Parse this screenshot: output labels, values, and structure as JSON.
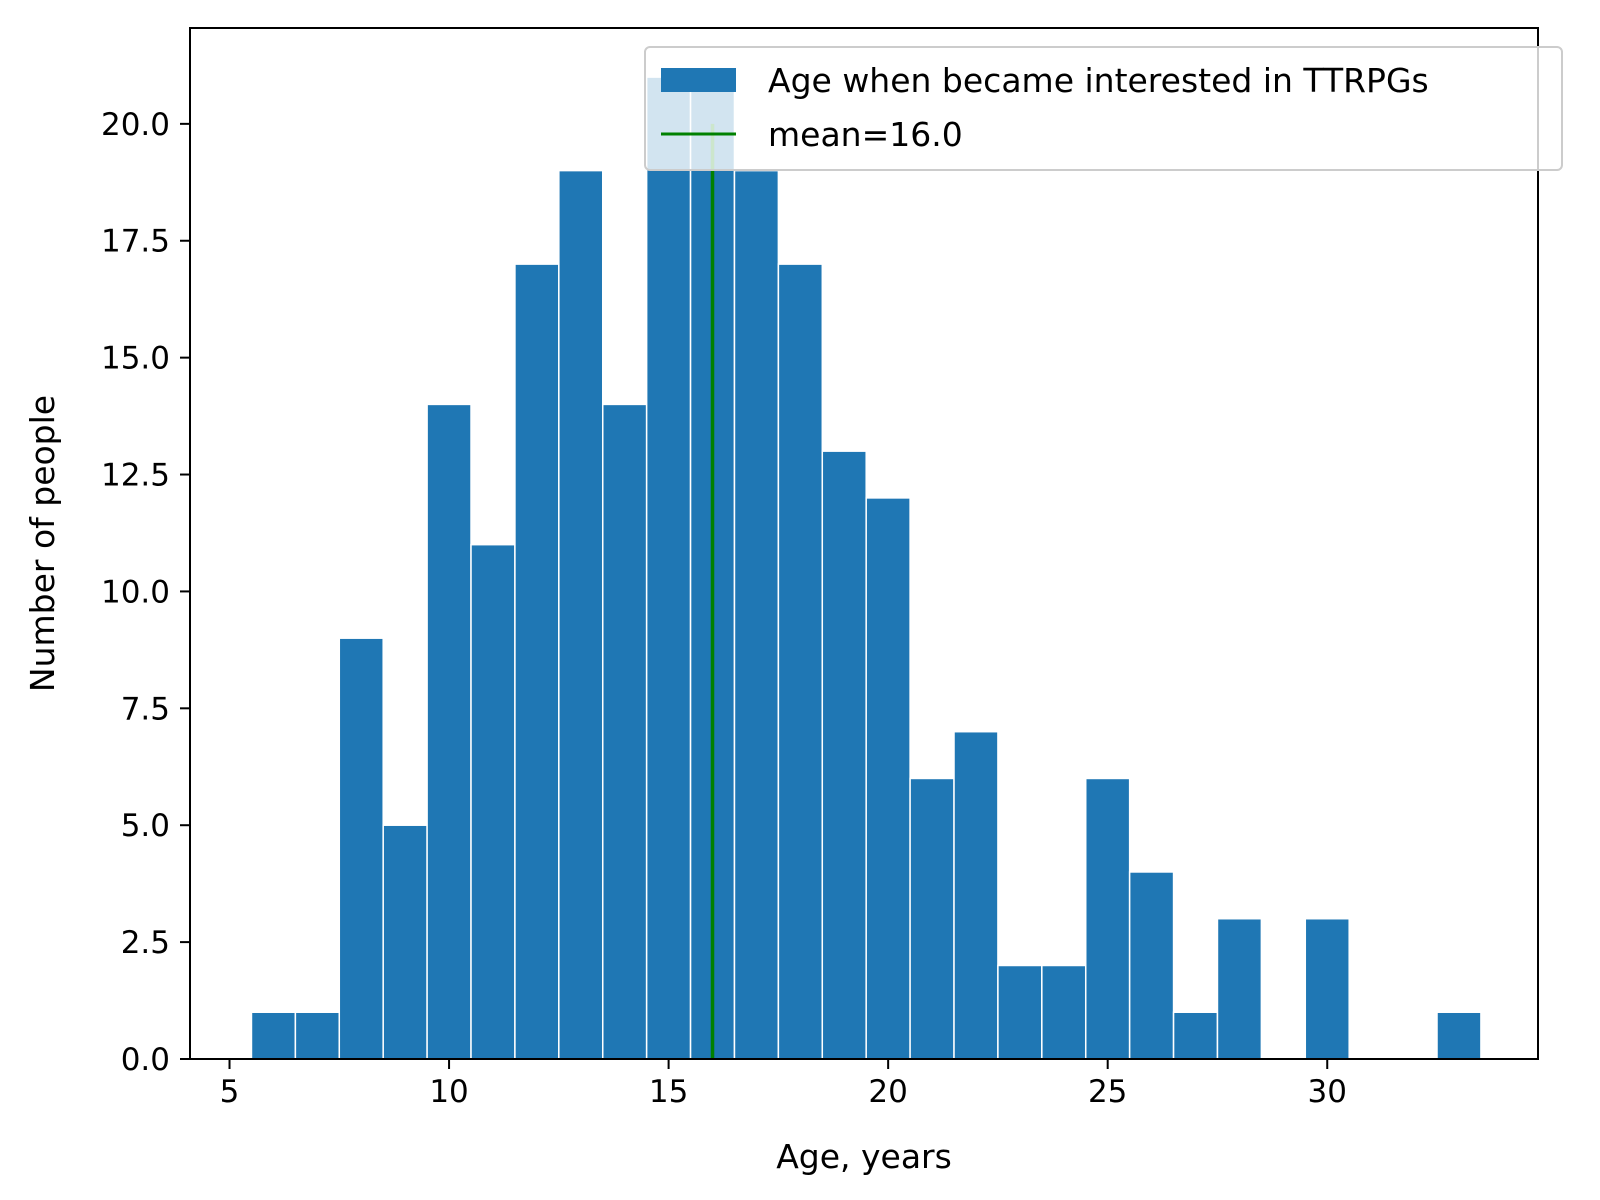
{
  "chart_data": {
    "type": "bar",
    "title": "",
    "xlabel": "Age, years",
    "ylabel": "Number of people",
    "xlim": [
      4.1,
      34.8
    ],
    "ylim": [
      0,
      22.05
    ],
    "xticks": [
      5,
      10,
      15,
      20,
      25,
      30
    ],
    "xtick_labels": [
      "5",
      "10",
      "15",
      "20",
      "25",
      "30"
    ],
    "yticks": [
      0,
      2.5,
      5,
      7.5,
      10,
      12.5,
      15,
      17.5,
      20
    ],
    "ytick_labels": [
      "0.0",
      "2.5",
      "5.0",
      "7.5",
      "10.0",
      "12.5",
      "15.0",
      "17.5",
      "20.0"
    ],
    "grid": false,
    "legend_position": "top-right",
    "bin_width": 1,
    "bin_centers": [
      6,
      7,
      8,
      9,
      10,
      11,
      12,
      13,
      14,
      15,
      16,
      17,
      18,
      19,
      20,
      21,
      22,
      23,
      24,
      25,
      26,
      27,
      28,
      29,
      30,
      31,
      32,
      33
    ],
    "series": [
      {
        "name": "Age when became interested in TTRPGs",
        "color": "#1f77b4",
        "values": [
          1,
          1,
          9,
          5,
          14,
          11,
          17,
          19,
          14,
          21,
          21,
          19,
          17,
          13,
          12,
          6,
          7,
          2,
          2,
          6,
          4,
          1,
          3,
          0,
          3,
          0,
          0,
          1
        ]
      }
    ],
    "mean_line": {
      "name": "mean=16.0",
      "x": 16.0,
      "y_range": [
        0,
        20
      ],
      "color": "#008000"
    }
  }
}
